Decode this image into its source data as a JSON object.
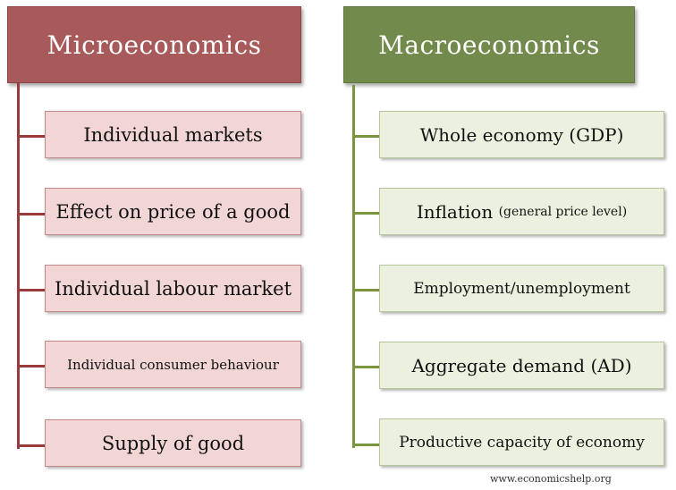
{
  "micro": {
    "title": "Microeconomics",
    "color": "#a85a5a",
    "items": [
      "Individual markets",
      "Effect on price of a good",
      "Individual labour market",
      "Individual consumer behaviour",
      "Supply of good"
    ]
  },
  "macro": {
    "title": "Macroeconomics",
    "color": "#728a4b",
    "items": [
      {
        "main": "Whole economy (GDP)",
        "sub": ""
      },
      {
        "main": "Inflation",
        "sub": "(general price level)"
      },
      {
        "main": "Employment/unemployment",
        "sub": ""
      },
      {
        "main": "Aggregate demand (AD)",
        "sub": ""
      },
      {
        "main": "Productive capacity of economy",
        "sub": ""
      }
    ]
  },
  "footer": {
    "watermark": "www.economicshelp.org"
  }
}
